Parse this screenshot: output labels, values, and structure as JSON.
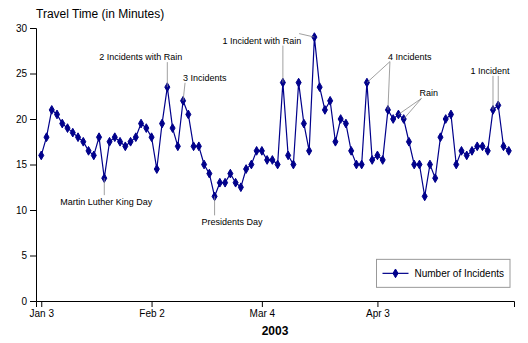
{
  "chart_data": {
    "type": "line",
    "title": "Travel Time (in Minutes)",
    "x_label": "2003",
    "x": [
      1,
      2,
      3,
      4,
      5,
      6,
      7,
      8,
      9,
      10,
      11,
      12,
      13,
      14,
      15,
      16,
      17,
      18,
      19,
      20,
      21,
      22,
      23,
      24,
      25,
      26,
      27,
      28,
      29,
      30,
      31,
      32,
      33,
      34,
      35,
      36,
      37,
      38,
      39,
      40,
      41,
      42,
      43,
      44,
      45,
      46,
      47,
      48,
      49,
      50,
      51,
      52,
      53,
      54,
      55,
      56,
      57,
      58,
      59,
      60,
      61,
      62,
      63,
      64,
      65,
      66,
      67,
      68,
      69,
      70,
      71,
      72,
      73,
      74,
      75,
      76,
      77,
      78,
      79,
      80,
      81,
      82,
      83,
      84,
      85,
      86,
      87,
      88,
      89,
      90
    ],
    "series": [
      {
        "name": "Number of Incidents",
        "color": "#00008B",
        "marker": "diamond",
        "values": [
          16.0,
          18.0,
          21.0,
          20.5,
          19.5,
          19.0,
          18.5,
          18.0,
          17.5,
          16.5,
          16.0,
          18.0,
          13.5,
          17.5,
          18.0,
          17.5,
          17.0,
          17.5,
          18.0,
          19.5,
          19.0,
          18.0,
          14.5,
          19.5,
          23.5,
          19.0,
          17.0,
          22.0,
          20.5,
          17.0,
          17.0,
          15.0,
          14.0,
          11.5,
          13.0,
          13.0,
          14.0,
          13.0,
          12.5,
          14.5,
          15.0,
          16.5,
          16.5,
          15.5,
          15.5,
          15.0,
          24.0,
          16.0,
          15.0,
          24.0,
          19.5,
          16.5,
          29.0,
          23.5,
          21.0,
          22.0,
          17.5,
          20.0,
          19.5,
          16.5,
          15.0,
          15.0,
          24.0,
          15.5,
          16.0,
          15.5,
          21.0,
          20.0,
          20.5,
          20.0,
          17.5,
          15.0,
          15.0,
          11.5,
          15.0,
          13.5,
          18.0,
          20.0,
          20.5,
          15.0,
          16.5,
          16.0,
          16.5,
          17.0,
          17.0,
          16.5,
          21.0,
          21.5,
          17.0,
          16.5
        ]
      }
    ],
    "xlim": [
      0,
      91
    ],
    "xticks": [
      {
        "value": 1,
        "label": "Jan 3"
      },
      {
        "value": 22,
        "label": "Feb 2"
      },
      {
        "value": 43,
        "label": "Mar 4"
      },
      {
        "value": 65,
        "label": "Apr 3"
      }
    ],
    "ylim": [
      0,
      30
    ],
    "yticks": [
      0,
      5,
      10,
      15,
      20,
      25,
      30
    ],
    "grid": false,
    "legend": "lower right",
    "annotations": [
      {
        "text": "Martin Luther King Day",
        "x": [
          13
        ]
      },
      {
        "text": "2 Incidents with Rain",
        "x": [
          25
        ]
      },
      {
        "text": "3 Incidents",
        "x": [
          28
        ]
      },
      {
        "text": "Presidents Day",
        "x": [
          34
        ]
      },
      {
        "text": "1 Incident with Rain",
        "x": [
          47,
          53
        ]
      },
      {
        "text": "4 Incidents",
        "x": [
          63,
          67
        ]
      },
      {
        "text": "Rain",
        "x": [
          69,
          70
        ]
      },
      {
        "text": "1 Incident",
        "x": [
          87,
          88
        ]
      }
    ]
  }
}
